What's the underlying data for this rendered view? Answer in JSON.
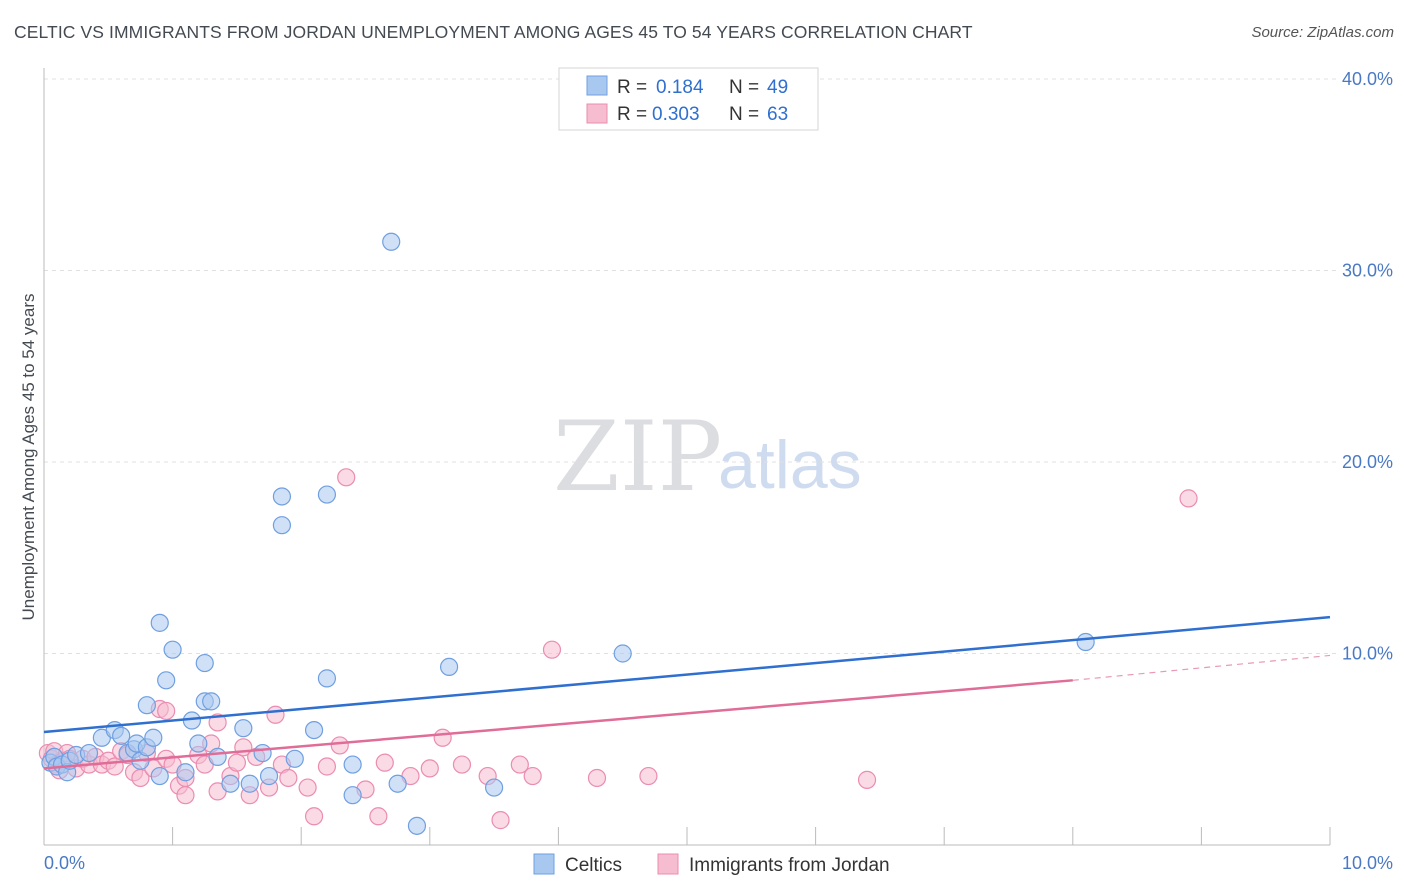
{
  "header": {
    "title": "CELTIC VS IMMIGRANTS FROM JORDAN UNEMPLOYMENT AMONG AGES 45 TO 54 YEARS CORRELATION CHART",
    "source": "Source: ZipAtlas.com"
  },
  "watermark": {
    "zip": "ZIP",
    "atlas": "atlas"
  },
  "legend": {
    "rows": [
      {
        "r_label": "R =",
        "r_value": "0.184",
        "n_label": "N =",
        "n_value": "49"
      },
      {
        "r_label": "R =",
        "r_value": "0.303",
        "n_label": "N =",
        "n_value": "63"
      }
    ]
  },
  "colors": {
    "celtics_fill": "#a9c8f0",
    "celtics_stroke": "#6f9fe0",
    "celtics_line": "#2f6fcf",
    "jordan_fill": "#f6bcd0",
    "jordan_stroke": "#eb8cb0",
    "jordan_line": "#e06c98",
    "tick_label": "#4a79c4",
    "grid": "#e0e0e0"
  },
  "chart_data": {
    "type": "scatter",
    "title": "CELTIC VS IMMIGRANTS FROM JORDAN UNEMPLOYMENT AMONG AGES 45 TO 54 YEARS CORRELATION CHART",
    "xlabel": "",
    "ylabel": "Unemployment Among Ages 45 to 54 years",
    "xlim": [
      0,
      10
    ],
    "ylim": [
      0,
      40
    ],
    "x_tick_labels": [
      "0.0%",
      "10.0%"
    ],
    "y_ticks": [
      10,
      20,
      30,
      40
    ],
    "y_tick_labels": [
      "10.0%",
      "20.0%",
      "30.0%",
      "40.0%"
    ],
    "grid": true,
    "legend_position": "bottom",
    "series": [
      {
        "name": "Celtics",
        "r": 0.184,
        "n": 49,
        "trend": {
          "x": [
            0,
            10
          ],
          "y": [
            5.9,
            11.9
          ]
        },
        "points": [
          [
            0.05,
            4.3
          ],
          [
            0.08,
            4.6
          ],
          [
            0.1,
            4.1
          ],
          [
            0.14,
            4.2
          ],
          [
            0.18,
            3.8
          ],
          [
            0.2,
            4.4
          ],
          [
            0.25,
            4.7
          ],
          [
            0.35,
            4.8
          ],
          [
            0.45,
            5.6
          ],
          [
            0.55,
            6.0
          ],
          [
            0.6,
            5.7
          ],
          [
            0.65,
            4.8
          ],
          [
            0.7,
            5.0
          ],
          [
            0.72,
            5.3
          ],
          [
            0.75,
            4.4
          ],
          [
            0.8,
            5.1
          ],
          [
            0.85,
            5.6
          ],
          [
            0.8,
            7.3
          ],
          [
            0.9,
            11.6
          ],
          [
            0.9,
            3.6
          ],
          [
            0.95,
            8.6
          ],
          [
            1.0,
            10.2
          ],
          [
            1.1,
            3.8
          ],
          [
            1.15,
            6.5
          ],
          [
            1.2,
            5.3
          ],
          [
            1.25,
            7.5
          ],
          [
            1.25,
            9.5
          ],
          [
            1.3,
            7.5
          ],
          [
            1.35,
            4.6
          ],
          [
            1.45,
            3.2
          ],
          [
            1.55,
            6.1
          ],
          [
            1.6,
            3.2
          ],
          [
            1.7,
            4.8
          ],
          [
            1.75,
            3.6
          ],
          [
            1.85,
            16.7
          ],
          [
            1.85,
            18.2
          ],
          [
            1.95,
            4.5
          ],
          [
            2.1,
            6.0
          ],
          [
            2.2,
            8.7
          ],
          [
            2.2,
            18.3
          ],
          [
            2.4,
            4.2
          ],
          [
            2.4,
            2.6
          ],
          [
            2.7,
            31.5
          ],
          [
            2.75,
            3.2
          ],
          [
            2.9,
            1.0
          ],
          [
            3.15,
            9.3
          ],
          [
            3.5,
            3.0
          ],
          [
            4.5,
            10.0
          ],
          [
            8.1,
            10.6
          ]
        ]
      },
      {
        "name": "Immigrants from Jordan",
        "r": 0.303,
        "n": 63,
        "trend": {
          "x": [
            0,
            8
          ],
          "y": [
            4.0,
            8.6
          ]
        },
        "trend_extension": {
          "x": [
            8,
            10
          ],
          "y": [
            8.6,
            9.9
          ]
        },
        "points": [
          [
            0.03,
            4.8
          ],
          [
            0.06,
            4.5
          ],
          [
            0.08,
            4.9
          ],
          [
            0.1,
            4.2
          ],
          [
            0.12,
            3.9
          ],
          [
            0.15,
            4.4
          ],
          [
            0.18,
            4.8
          ],
          [
            0.2,
            4.5
          ],
          [
            0.25,
            4.0
          ],
          [
            0.3,
            4.5
          ],
          [
            0.35,
            4.2
          ],
          [
            0.4,
            4.6
          ],
          [
            0.45,
            4.2
          ],
          [
            0.5,
            4.4
          ],
          [
            0.55,
            4.1
          ],
          [
            0.6,
            4.9
          ],
          [
            0.65,
            4.7
          ],
          [
            0.7,
            3.8
          ],
          [
            0.75,
            3.5
          ],
          [
            0.8,
            4.8
          ],
          [
            0.85,
            4.0
          ],
          [
            0.9,
            7.1
          ],
          [
            0.95,
            4.5
          ],
          [
            1.0,
            4.2
          ],
          [
            1.05,
            3.1
          ],
          [
            1.1,
            3.5
          ],
          [
            1.1,
            2.6
          ],
          [
            1.2,
            4.7
          ],
          [
            1.25,
            4.2
          ],
          [
            1.3,
            5.3
          ],
          [
            1.35,
            2.8
          ],
          [
            1.45,
            3.6
          ],
          [
            1.5,
            4.3
          ],
          [
            1.55,
            5.1
          ],
          [
            1.6,
            2.6
          ],
          [
            1.65,
            4.6
          ],
          [
            1.75,
            3.0
          ],
          [
            1.8,
            6.8
          ],
          [
            1.85,
            4.2
          ],
          [
            1.9,
            3.5
          ],
          [
            2.05,
            3.0
          ],
          [
            2.1,
            1.5
          ],
          [
            2.2,
            4.1
          ],
          [
            2.3,
            5.2
          ],
          [
            2.35,
            19.2
          ],
          [
            2.5,
            2.9
          ],
          [
            2.6,
            1.5
          ],
          [
            2.65,
            4.3
          ],
          [
            2.85,
            3.6
          ],
          [
            3.0,
            4.0
          ],
          [
            3.1,
            5.6
          ],
          [
            3.25,
            4.2
          ],
          [
            3.45,
            3.6
          ],
          [
            3.55,
            1.3
          ],
          [
            3.7,
            4.2
          ],
          [
            3.8,
            3.6
          ],
          [
            3.95,
            10.2
          ],
          [
            4.3,
            3.5
          ],
          [
            4.7,
            3.6
          ],
          [
            1.35,
            6.4
          ],
          [
            0.95,
            7.0
          ],
          [
            8.9,
            18.1
          ],
          [
            6.4,
            3.4
          ]
        ]
      }
    ]
  }
}
